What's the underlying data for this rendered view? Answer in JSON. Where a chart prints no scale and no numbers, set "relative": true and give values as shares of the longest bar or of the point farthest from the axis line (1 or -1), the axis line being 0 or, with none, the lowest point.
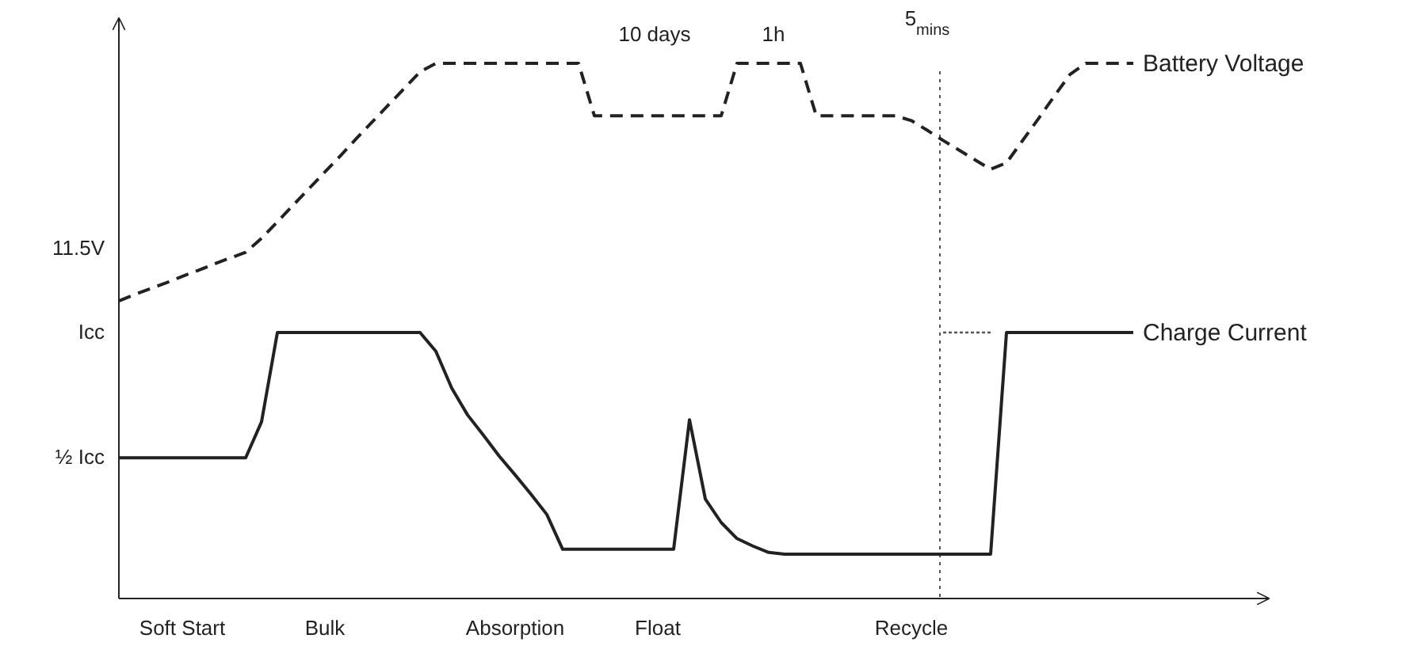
{
  "chart_data": {
    "type": "line",
    "relative": true,
    "categories": [
      null,
      null,
      null,
      null,
      "Soft Start",
      null,
      null,
      null,
      null,
      null,
      null,
      null,
      null,
      "Bulk",
      null,
      null,
      null,
      null,
      null,
      null,
      null,
      null,
      null,
      null,
      null,
      "Absorption",
      null,
      null,
      null,
      null,
      null,
      null,
      null,
      null,
      "Float",
      null,
      null,
      null,
      null,
      null,
      null,
      null,
      null,
      null,
      null,
      null,
      null,
      null,
      null,
      null,
      "Recycle",
      null,
      null,
      null,
      null,
      null,
      null,
      null,
      null,
      null,
      null,
      null,
      null,
      null,
      null
    ],
    "grid": false,
    "legend": false,
    "marker": "none",
    "series": [
      {
        "name": "Battery Voltage",
        "color": "#222222",
        "line_style": "dashed",
        "values": [
          0.556,
          0.568,
          0.579,
          0.59,
          0.602,
          0.613,
          0.625,
          0.636,
          0.647,
          0.673,
          0.704,
          0.735,
          0.766,
          0.797,
          0.828,
          0.86,
          0.891,
          0.922,
          0.953,
          0.984,
          1,
          1,
          1,
          1,
          1,
          1,
          1,
          1,
          1,
          1,
          0.902,
          0.902,
          0.902,
          0.902,
          0.902,
          0.902,
          0.902,
          0.902,
          0.902,
          1,
          1,
          1,
          1,
          1,
          0.902,
          0.902,
          0.902,
          0.902,
          0.902,
          0.902,
          0.893,
          0.875,
          0.856,
          0.838,
          0.82,
          0.802,
          0.814,
          0.855,
          0.896,
          0.938,
          0.979,
          1,
          1,
          1,
          1
        ]
      },
      {
        "name": "Charge Current",
        "color": "#222222",
        "line_style": "solid",
        "values": [
          0.263,
          0.263,
          0.263,
          0.263,
          0.263,
          0.263,
          0.263,
          0.263,
          0.263,
          0.33,
          0.497,
          0.497,
          0.497,
          0.497,
          0.497,
          0.497,
          0.497,
          0.497,
          0.497,
          0.497,
          0.462,
          0.393,
          0.343,
          0.305,
          0.266,
          0.231,
          0.195,
          0.157,
          0.092,
          0.092,
          0.092,
          0.092,
          0.092,
          0.092,
          0.092,
          0.092,
          0.334,
          0.186,
          0.142,
          0.112,
          0.098,
          0.086,
          0.083,
          0.083,
          0.083,
          0.083,
          0.083,
          0.083,
          0.083,
          0.083,
          0.083,
          0.083,
          0.083,
          0.083,
          0.083,
          0.083,
          0.497,
          0.497,
          0.497,
          0.497,
          0.497,
          0.497,
          0.497,
          0.497,
          0.497
        ]
      },
      {
        "color": "#555555",
        "line_style": "dotted",
        "values": [
          null,
          null,
          null,
          null,
          null,
          null,
          null,
          null,
          null,
          null,
          null,
          null,
          null,
          null,
          null,
          null,
          null,
          null,
          null,
          null,
          null,
          null,
          null,
          null,
          null,
          null,
          null,
          null,
          null,
          null,
          null,
          null,
          null,
          null,
          null,
          null,
          null,
          null,
          null,
          null,
          null,
          null,
          null,
          null,
          null,
          null,
          null,
          null,
          null,
          null,
          null,
          null,
          0.497,
          0.497,
          0.497,
          0.497,
          null,
          null,
          null,
          null,
          null,
          null,
          null,
          null,
          null
        ]
      }
    ],
    "annotations": [
      "11.5V",
      "Icc",
      "½ Icc",
      "10 days",
      "1h",
      "5$_{mins}$"
    ]
  }
}
